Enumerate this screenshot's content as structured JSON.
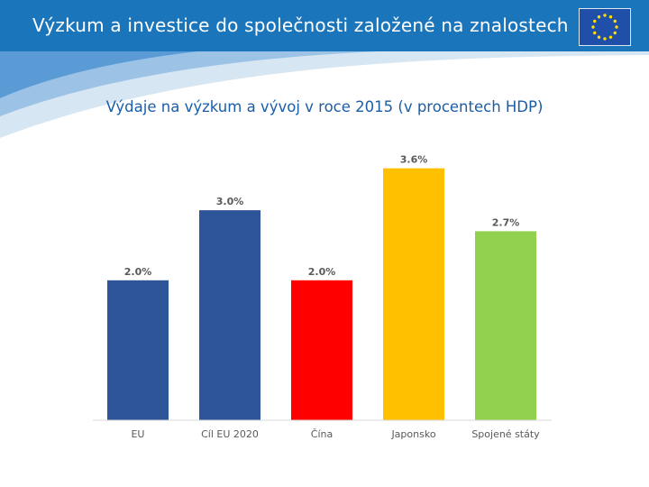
{
  "header": {
    "title": "Výzkum a investice do společnosti založené na znalostech",
    "background": "#1b75bb",
    "logo_icon": "eu-flag-icon"
  },
  "chart_data": {
    "type": "bar",
    "title": "Výdaje na výzkum a vývoj v roce 2015 (v procentech HDP)",
    "categories": [
      "EU",
      "Cíl EU 2020",
      "Čína",
      "Japonsko",
      "Spojené státy"
    ],
    "values": [
      2.0,
      3.0,
      2.0,
      3.6,
      2.7
    ],
    "data_labels": [
      "2.0%",
      "3.0%",
      "2.0%",
      "3.6%",
      "2.7%"
    ],
    "colors": [
      "#2e5597",
      "#2e5597",
      "#ff0000",
      "#ffc000",
      "#92d050"
    ],
    "ylim": [
      0,
      4.2
    ],
    "grid": false,
    "legend": "none",
    "xlabel": "",
    "ylabel": ""
  }
}
